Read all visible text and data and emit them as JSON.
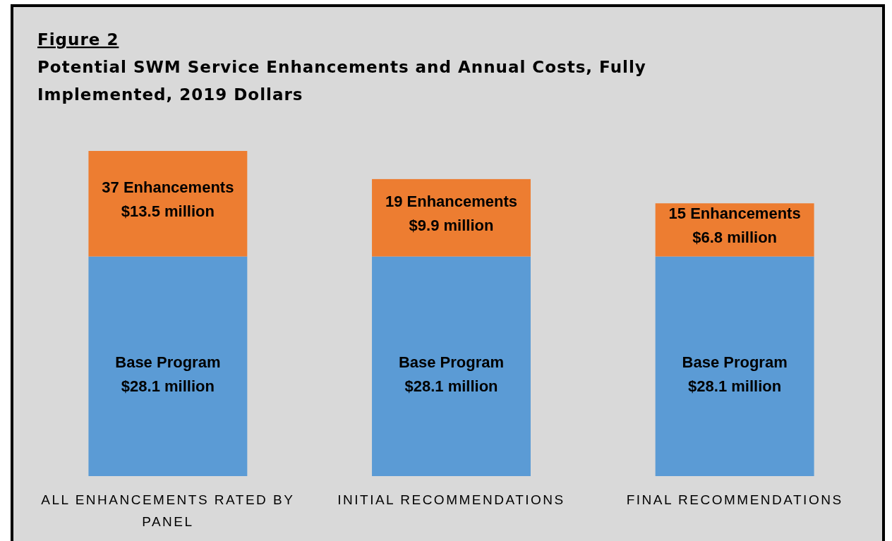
{
  "chart_data": {
    "type": "bar",
    "stacked": true,
    "title": "Figure 2",
    "subtitle": "Potential SWM Service Enhancements and Annual Costs, Fully Implemented, 2019 Dollars",
    "categories": [
      "ALL ENHANCEMENTS RATED BY PANEL",
      "INITIAL RECOMMENDATIONS",
      "FINAL RECOMMENDATIONS"
    ],
    "series": [
      {
        "name": "Base Program",
        "color": "#5b9bd5",
        "values": [
          28.1,
          28.1,
          28.1
        ],
        "value_labels": [
          "$28.1 million",
          "$28.1 million",
          "$28.1 million"
        ]
      },
      {
        "color": "#ed7d31",
        "values": [
          13.5,
          9.9,
          6.8
        ],
        "value_labels": [
          "$13.5 million",
          "$9.9 million",
          "$6.8 million"
        ]
      }
    ],
    "annotations": [
      {
        "text": "37 Enhancements",
        "x": "ALL ENHANCEMENTS RATED BY PANEL",
        "y": 41.6
      },
      {
        "text": "19 Enhancements",
        "x": "INITIAL RECOMMENDATIONS",
        "y": 38.0
      },
      {
        "text": "15 Enhancements",
        "x": "FINAL RECOMMENDATIONS",
        "y": 34.9
      }
    ]
  }
}
